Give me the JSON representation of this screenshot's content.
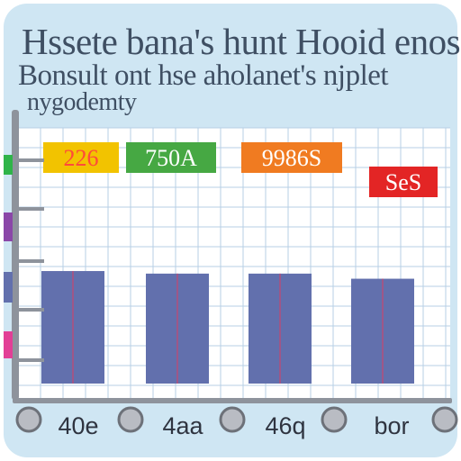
{
  "header": {
    "line1": "Hssete bana's hunt Hooid enos",
    "line2": "Bonsult ont hse aholanet's njplet",
    "line3": "nygodemty"
  },
  "chart_data": {
    "type": "bar",
    "categories": [
      "40e",
      "4aa",
      "46q",
      "bor"
    ],
    "series": [
      {
        "values": [
          88,
          86,
          86,
          82
        ]
      }
    ],
    "data_labels": [
      "226",
      "750A",
      "9986S",
      "SeS"
    ],
    "ylim": [
      0,
      200
    ],
    "grid": true,
    "legend": "none",
    "colors": {
      "bar": "#6270ad",
      "bar_divider": "#b34f7c",
      "grid": "#b7cfe6",
      "frame": "#cfe6f3",
      "labels": [
        "#f2c300",
        "#46a843",
        "#f07b21",
        "#e32525"
      ],
      "side_markers": [
        "#2fb449",
        "#8a47a8",
        "#6270ad",
        "#e23f96"
      ]
    }
  }
}
